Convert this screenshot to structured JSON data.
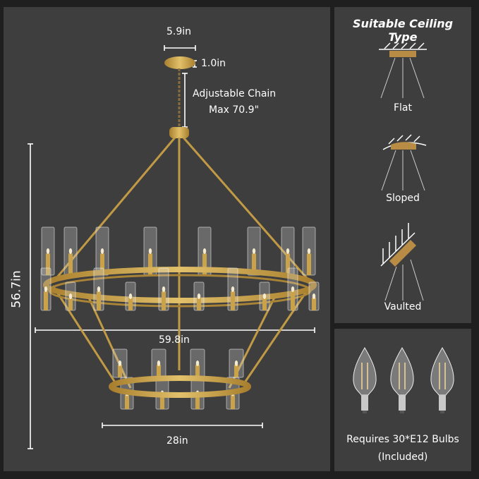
{
  "dimensions": {
    "canopy_width": "5.9in",
    "canopy_height": "1.0in",
    "chain_line1": "Adjustable Chain",
    "chain_line2": "Max 70.9\"",
    "total_height": "56.7in",
    "upper_diameter": "59.8in",
    "lower_diameter": "28in"
  },
  "ceiling": {
    "title": "Suitable Ceiling Type",
    "types": [
      "Flat",
      "Sloped",
      "Vaulted"
    ]
  },
  "bulbs": {
    "line1": "Requires 30*E12 Bulbs",
    "line2": "(Included)",
    "count_shown": 3
  },
  "colors": {
    "gold": "#c9a24a",
    "panel": "#3e3e3e",
    "background": "#1f1f1f",
    "ceiling_plate": "#b88c45"
  }
}
